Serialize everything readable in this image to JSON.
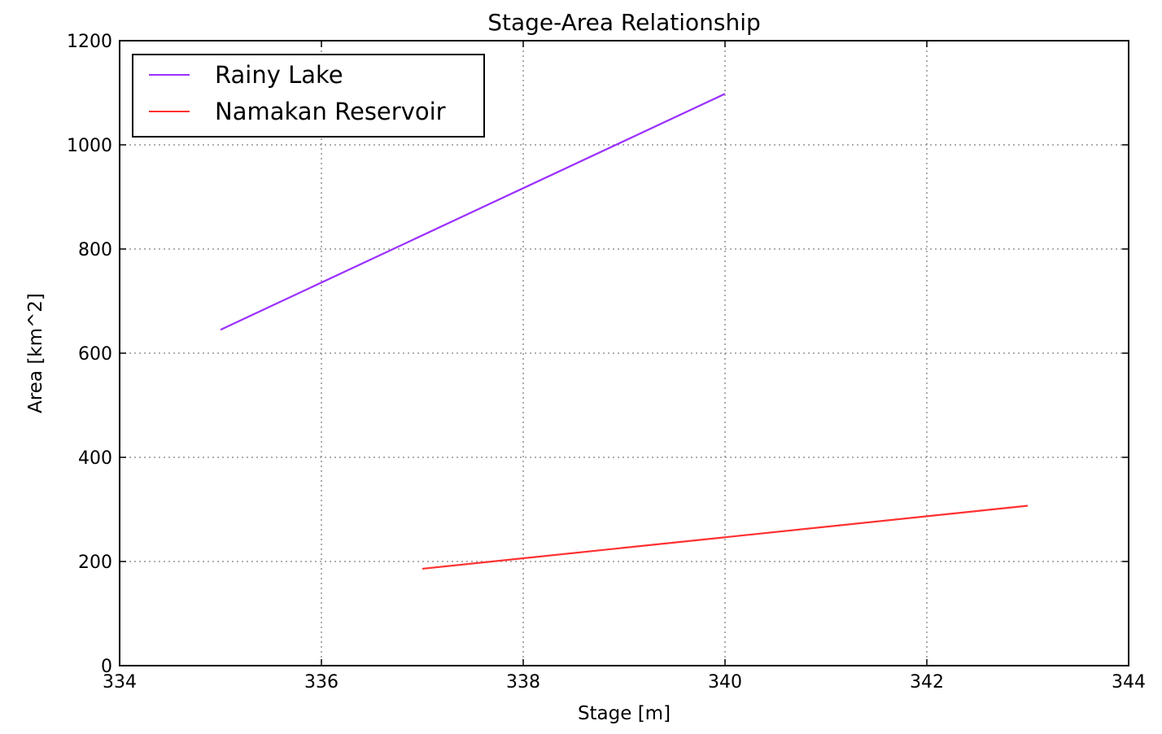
{
  "chart_data": {
    "type": "line",
    "title": "Stage-Area Relationship",
    "xlabel": "Stage [m]",
    "ylabel": "Area [km^2]",
    "xlim": [
      334,
      344
    ],
    "ylim": [
      0,
      1200
    ],
    "xticks": [
      "334",
      "336",
      "338",
      "340",
      "342",
      "344"
    ],
    "yticks": [
      "0",
      "200",
      "400",
      "600",
      "800",
      "1000",
      "1200"
    ],
    "grid": true,
    "legend_position": "top-left",
    "series": [
      {
        "name": "Rainy Lake",
        "color": "#9b30ff",
        "x": [
          335,
          340
        ],
        "y": [
          645,
          1098
        ]
      },
      {
        "name": "Namakan Reservoir",
        "color": "#ff3030",
        "x": [
          337,
          343
        ],
        "y": [
          186,
          307
        ]
      }
    ]
  }
}
